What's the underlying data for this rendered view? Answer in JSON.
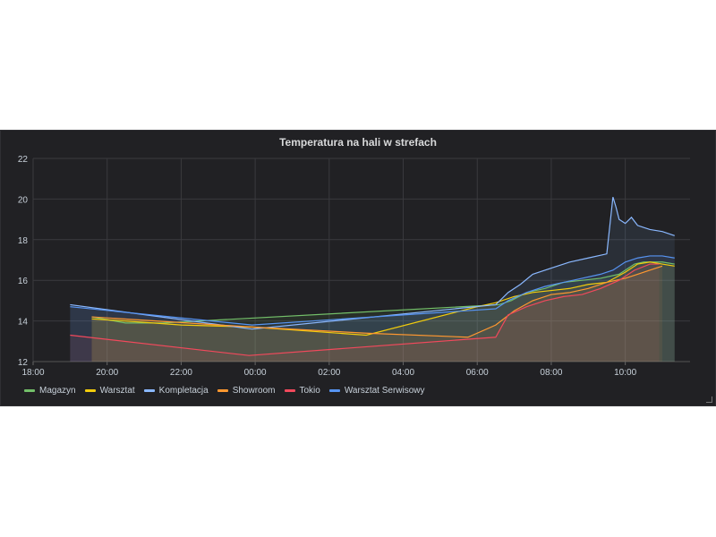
{
  "panel": {
    "title": "Temperatura na hali w strefach"
  },
  "chart_data": {
    "type": "area",
    "title": "Temperatura na hali w strefach",
    "xlabel": "",
    "ylabel": "",
    "x_ticks": [
      "18:00",
      "20:00",
      "22:00",
      "00:00",
      "02:00",
      "04:00",
      "06:00",
      "08:00",
      "10:00"
    ],
    "y_ticks": [
      12,
      14,
      16,
      18,
      20,
      22
    ],
    "xlim": [
      "18:00",
      "11:45"
    ],
    "ylim": [
      12,
      22
    ],
    "grid": true,
    "legend_position": "bottom-left",
    "series": [
      {
        "name": "Magazyn",
        "color": "#73bf69",
        "points": [
          [
            "19:35",
            14.2
          ],
          [
            "20:30",
            13.9
          ],
          [
            "21:30",
            13.9
          ],
          [
            "06:35",
            14.8
          ],
          [
            "06:55",
            15.0
          ],
          [
            "07:20",
            15.4
          ],
          [
            "07:50",
            15.6
          ],
          [
            "08:20",
            15.9
          ],
          [
            "08:50",
            16.0
          ],
          [
            "09:20",
            16.1
          ],
          [
            "09:50",
            16.3
          ],
          [
            "10:00",
            16.5
          ],
          [
            "10:15",
            16.8
          ],
          [
            "10:30",
            16.9
          ],
          [
            "11:00",
            16.9
          ],
          [
            "11:20",
            16.8
          ]
        ]
      },
      {
        "name": "Warsztat",
        "color": "#f2cc0c",
        "points": [
          [
            "19:35",
            14.1
          ],
          [
            "20:30",
            14.0
          ],
          [
            "22:00",
            13.8
          ],
          [
            "23:55",
            13.7
          ],
          [
            "03:00",
            13.3
          ],
          [
            "06:00",
            14.7
          ],
          [
            "06:30",
            14.9
          ],
          [
            "07:00",
            15.2
          ],
          [
            "07:30",
            15.4
          ],
          [
            "08:00",
            15.5
          ],
          [
            "08:30",
            15.6
          ],
          [
            "09:00",
            15.8
          ],
          [
            "09:30",
            15.9
          ],
          [
            "10:00",
            16.4
          ],
          [
            "10:20",
            16.8
          ],
          [
            "10:40",
            16.9
          ],
          [
            "11:00",
            16.8
          ],
          [
            "11:20",
            16.7
          ]
        ]
      },
      {
        "name": "Kompletacja",
        "color": "#8ab8ff",
        "points": [
          [
            "19:00",
            14.8
          ],
          [
            "23:55",
            13.6
          ],
          [
            "06:30",
            14.8
          ],
          [
            "06:50",
            15.4
          ],
          [
            "07:10",
            15.8
          ],
          [
            "07:30",
            16.3
          ],
          [
            "08:00",
            16.6
          ],
          [
            "08:30",
            16.9
          ],
          [
            "09:00",
            17.1
          ],
          [
            "09:30",
            17.3
          ],
          [
            "09:40",
            20.1
          ],
          [
            "09:45",
            19.6
          ],
          [
            "09:50",
            19.0
          ],
          [
            "10:00",
            18.8
          ],
          [
            "10:10",
            19.1
          ],
          [
            "10:20",
            18.7
          ],
          [
            "10:40",
            18.5
          ],
          [
            "11:00",
            18.4
          ],
          [
            "11:20",
            18.2
          ]
        ]
      },
      {
        "name": "Showroom",
        "color": "#ff9830",
        "points": [
          [
            "19:35",
            14.2
          ],
          [
            "23:55",
            13.7
          ],
          [
            "03:00",
            13.4
          ],
          [
            "05:45",
            13.2
          ],
          [
            "06:30",
            13.8
          ],
          [
            "07:00",
            14.5
          ],
          [
            "07:30",
            15.0
          ],
          [
            "08:00",
            15.3
          ],
          [
            "08:30",
            15.4
          ],
          [
            "09:00",
            15.6
          ],
          [
            "09:30",
            15.9
          ],
          [
            "10:00",
            16.1
          ],
          [
            "10:20",
            16.3
          ],
          [
            "10:40",
            16.5
          ],
          [
            "11:00",
            16.7
          ]
        ]
      },
      {
        "name": "Tokio",
        "color": "#f2495c",
        "points": [
          [
            "19:00",
            13.3
          ],
          [
            "23:50",
            12.3
          ],
          [
            "05:45",
            13.1
          ],
          [
            "06:30",
            13.2
          ],
          [
            "06:50",
            14.3
          ],
          [
            "07:20",
            14.7
          ],
          [
            "07:50",
            15.0
          ],
          [
            "08:20",
            15.2
          ],
          [
            "08:50",
            15.3
          ],
          [
            "09:20",
            15.6
          ],
          [
            "09:50",
            16.0
          ],
          [
            "10:15",
            16.5
          ],
          [
            "10:40",
            16.8
          ],
          [
            "10:55",
            16.8
          ]
        ]
      },
      {
        "name": "Warsztat Serwisowy",
        "color": "#5794f2",
        "points": [
          [
            "19:00",
            14.7
          ],
          [
            "23:55",
            13.8
          ],
          [
            "06:30",
            14.6
          ],
          [
            "06:50",
            15.0
          ],
          [
            "07:20",
            15.4
          ],
          [
            "07:50",
            15.7
          ],
          [
            "08:20",
            15.9
          ],
          [
            "08:50",
            16.1
          ],
          [
            "09:20",
            16.3
          ],
          [
            "09:40",
            16.5
          ],
          [
            "10:00",
            16.9
          ],
          [
            "10:20",
            17.1
          ],
          [
            "10:40",
            17.2
          ],
          [
            "11:00",
            17.2
          ],
          [
            "11:20",
            17.1
          ]
        ]
      }
    ]
  }
}
